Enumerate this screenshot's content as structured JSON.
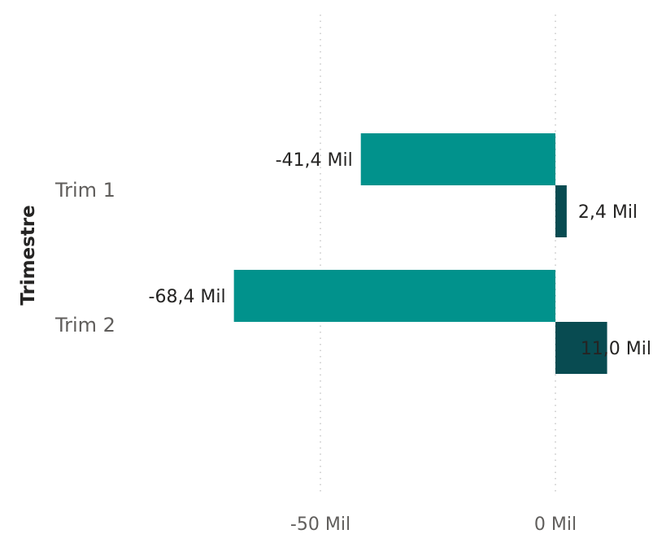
{
  "chart_data": {
    "type": "bar",
    "orientation": "horizontal",
    "ylabel": "Trimestre",
    "categories": [
      "Trim 1",
      "Trim 2"
    ],
    "series": [
      {
        "color": "#01928c",
        "values": [
          -41400,
          -68400
        ],
        "labels": [
          "-41,4 Mil",
          "-68,4 Mil"
        ]
      },
      {
        "color": "#084b51",
        "values": [
          2400,
          11000
        ],
        "labels": [
          "2,4 Mil",
          "11,0 Mil"
        ]
      }
    ],
    "xticks": [
      {
        "value": -50000,
        "label": "-50 Mil"
      },
      {
        "value": 0,
        "label": "0 Mil"
      }
    ],
    "xlim": [
      -100000,
      20000
    ],
    "grid": true,
    "legend": "none"
  }
}
